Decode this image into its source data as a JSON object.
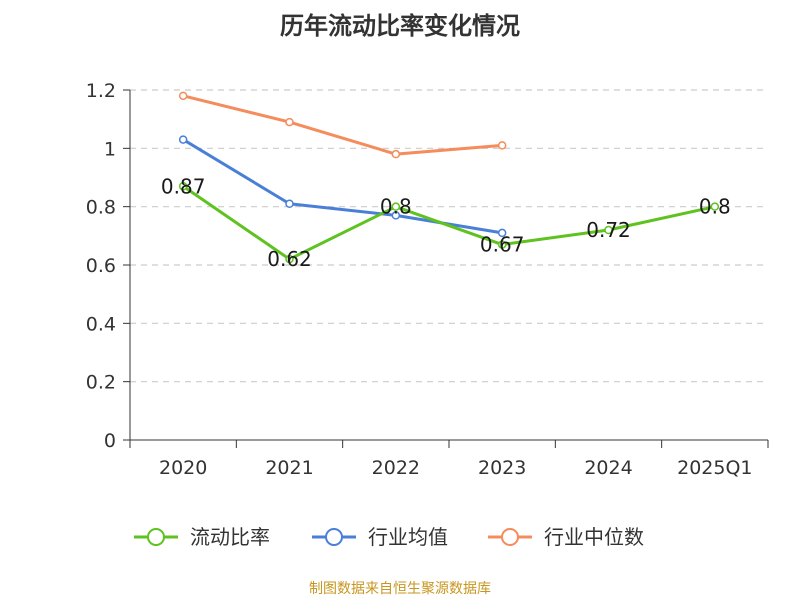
{
  "title": "历年流动比率变化情况",
  "source": "制图数据来自恒生聚源数据库",
  "colors": {
    "series_0": "#5ec21f",
    "series_1": "#4a7fd8",
    "series_2": "#f48c5c",
    "grid": "#cccccc",
    "axis": "#333333"
  },
  "chart_data": {
    "type": "line",
    "categories": [
      "2020",
      "2021",
      "2022",
      "2023",
      "2024",
      "2025Q1"
    ],
    "ylim": [
      0,
      1.2
    ],
    "yticks": [
      "0",
      "0.2",
      "0.4",
      "0.6",
      "0.8",
      "1",
      "1.2"
    ],
    "grid": true,
    "legend_position": "bottom",
    "series": [
      {
        "name": "流动比率",
        "values": [
          0.87,
          0.62,
          0.8,
          0.67,
          0.72,
          0.8
        ],
        "labels": [
          "0.87",
          "0.62",
          "0.8",
          "0.67",
          "0.72",
          "0.8"
        ]
      },
      {
        "name": "行业均值",
        "values": [
          1.03,
          0.81,
          0.77,
          0.71,
          null,
          null
        ]
      },
      {
        "name": "行业中位数",
        "values": [
          1.18,
          1.09,
          0.98,
          1.01,
          null,
          null
        ]
      }
    ]
  }
}
